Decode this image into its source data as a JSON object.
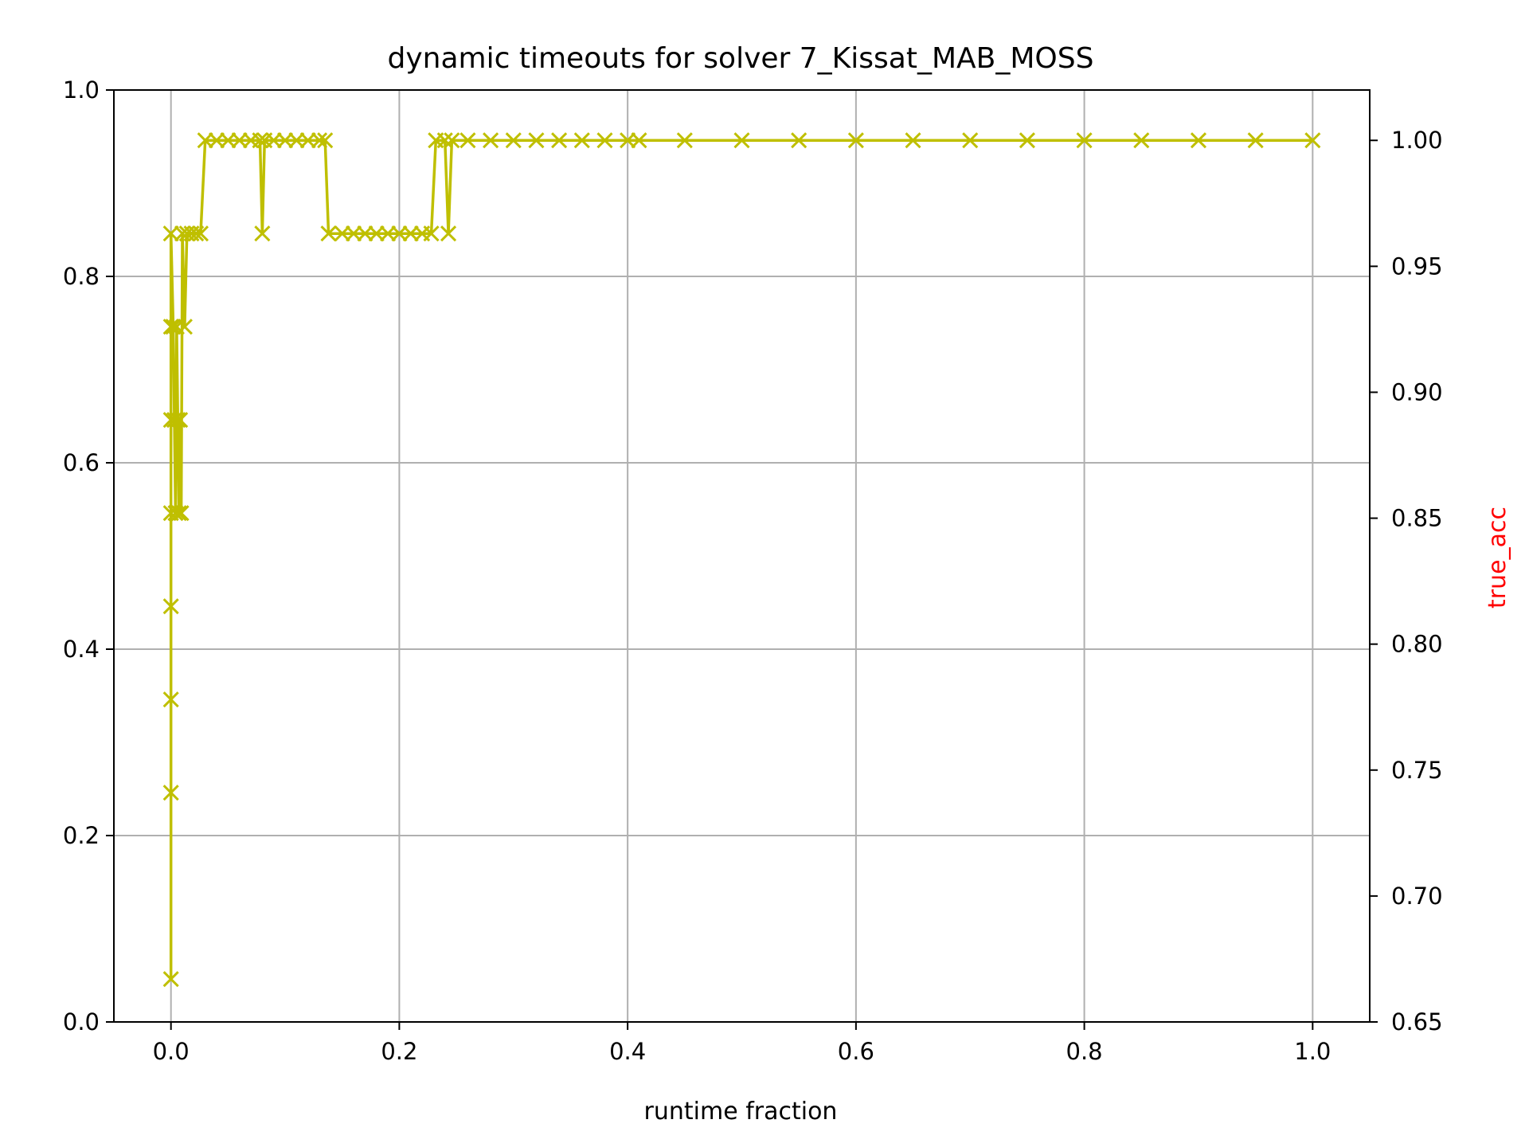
{
  "chart_data": {
    "type": "line",
    "title": "dynamic timeouts for solver 7_Kissat_MAB_MOSS",
    "xlabel": "runtime fraction",
    "ylabel": "",
    "y2label": "true_acc",
    "xlim": [
      -0.05,
      1.05
    ],
    "ylim": [
      0.0,
      1.0
    ],
    "y2lim": [
      0.65,
      1.02
    ],
    "x_ticks": [
      "0.0",
      "0.2",
      "0.4",
      "0.6",
      "0.8",
      "1.0"
    ],
    "y_ticks": [
      "0.0",
      "0.2",
      "0.4",
      "0.6",
      "0.8",
      "1.0"
    ],
    "y2_ticks": [
      "0.65",
      "0.70",
      "0.75",
      "0.80",
      "0.85",
      "0.90",
      "0.95",
      "1.00"
    ],
    "grid": true,
    "legend": "none",
    "marker": "x",
    "axis": "right",
    "series": [
      {
        "color": "#bfbf00",
        "points": [
          [
            0.0,
            0.667
          ],
          [
            0.0,
            0.741
          ],
          [
            0.0,
            0.778
          ],
          [
            0.0,
            0.815
          ],
          [
            0.0,
            0.852
          ],
          [
            0.0,
            0.889
          ],
          [
            0.0,
            0.926
          ],
          [
            0.0,
            0.963
          ],
          [
            0.002,
            0.926
          ],
          [
            0.003,
            0.889
          ],
          [
            0.004,
            0.852
          ],
          [
            0.005,
            0.926
          ],
          [
            0.006,
            0.889
          ],
          [
            0.007,
            0.852
          ],
          [
            0.008,
            0.889
          ],
          [
            0.009,
            0.852
          ],
          [
            0.01,
            0.963
          ],
          [
            0.012,
            0.926
          ],
          [
            0.014,
            0.963
          ],
          [
            0.018,
            0.963
          ],
          [
            0.022,
            0.963
          ],
          [
            0.026,
            0.963
          ],
          [
            0.03,
            1.0
          ],
          [
            0.04,
            1.0
          ],
          [
            0.05,
            1.0
          ],
          [
            0.06,
            1.0
          ],
          [
            0.07,
            1.0
          ],
          [
            0.078,
            1.0
          ],
          [
            0.08,
            0.963
          ],
          [
            0.082,
            1.0
          ],
          [
            0.09,
            1.0
          ],
          [
            0.1,
            1.0
          ],
          [
            0.11,
            1.0
          ],
          [
            0.12,
            1.0
          ],
          [
            0.13,
            1.0
          ],
          [
            0.135,
            1.0
          ],
          [
            0.138,
            0.963
          ],
          [
            0.15,
            0.963
          ],
          [
            0.16,
            0.963
          ],
          [
            0.17,
            0.963
          ],
          [
            0.18,
            0.963
          ],
          [
            0.19,
            0.963
          ],
          [
            0.2,
            0.963
          ],
          [
            0.21,
            0.963
          ],
          [
            0.22,
            0.963
          ],
          [
            0.228,
            0.963
          ],
          [
            0.232,
            1.0
          ],
          [
            0.24,
            1.0
          ],
          [
            0.243,
            0.963
          ],
          [
            0.246,
            1.0
          ],
          [
            0.26,
            1.0
          ],
          [
            0.28,
            1.0
          ],
          [
            0.3,
            1.0
          ],
          [
            0.32,
            1.0
          ],
          [
            0.34,
            1.0
          ],
          [
            0.36,
            1.0
          ],
          [
            0.38,
            1.0
          ],
          [
            0.4,
            1.0
          ],
          [
            0.41,
            1.0
          ],
          [
            0.45,
            1.0
          ],
          [
            0.5,
            1.0
          ],
          [
            0.55,
            1.0
          ],
          [
            0.6,
            1.0
          ],
          [
            0.65,
            1.0
          ],
          [
            0.7,
            1.0
          ],
          [
            0.75,
            1.0
          ],
          [
            0.8,
            1.0
          ],
          [
            0.85,
            1.0
          ],
          [
            0.9,
            1.0
          ],
          [
            0.95,
            1.0
          ],
          [
            1.0,
            1.0
          ]
        ]
      }
    ]
  }
}
